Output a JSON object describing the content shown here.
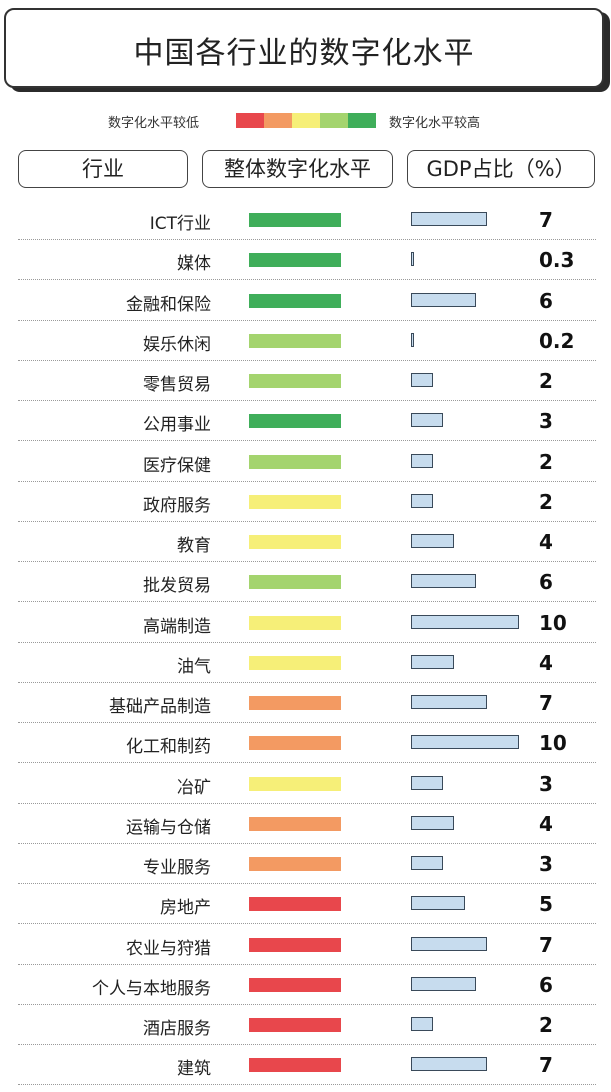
{
  "title": "中国各行业的数字化水平",
  "legend": {
    "low_label": "数字化水平较低",
    "high_label": "数字化水平较高",
    "colors": [
      "#e8474c",
      "#f39a62",
      "#f6ef78",
      "#a4d46e",
      "#3fae5a"
    ]
  },
  "headers": {
    "industry": "行业",
    "level": "整体数字化水平",
    "gdp": "GDP占比（%）"
  },
  "level_colors": {
    "5": "#3fae5a",
    "4": "#a4d46e",
    "3": "#f6ef78",
    "2": "#f39a62",
    "1": "#e8474c"
  },
  "chart_data": {
    "type": "table",
    "columns": [
      "行业",
      "整体数字化水平",
      "GDP占比（%）"
    ],
    "level_scale": "1 = 数字化水平较低 (red) … 5 = 数字化水平较高 (green)",
    "rows": [
      {
        "industry": "ICT行业",
        "level": 5,
        "gdp": 7,
        "gdp_label": "7"
      },
      {
        "industry": "媒体",
        "level": 5,
        "gdp": 0.3,
        "gdp_label": "0.3"
      },
      {
        "industry": "金融和保险",
        "level": 5,
        "gdp": 6,
        "gdp_label": "6"
      },
      {
        "industry": "娱乐休闲",
        "level": 4,
        "gdp": 0.2,
        "gdp_label": "0.2"
      },
      {
        "industry": "零售贸易",
        "level": 4,
        "gdp": 2,
        "gdp_label": "2"
      },
      {
        "industry": "公用事业",
        "level": 5,
        "gdp": 3,
        "gdp_label": "3"
      },
      {
        "industry": "医疗保健",
        "level": 4,
        "gdp": 2,
        "gdp_label": "2"
      },
      {
        "industry": "政府服务",
        "level": 3,
        "gdp": 2,
        "gdp_label": "2"
      },
      {
        "industry": "教育",
        "level": 3,
        "gdp": 4,
        "gdp_label": "4"
      },
      {
        "industry": "批发贸易",
        "level": 4,
        "gdp": 6,
        "gdp_label": "6"
      },
      {
        "industry": "高端制造",
        "level": 3,
        "gdp": 10,
        "gdp_label": "10"
      },
      {
        "industry": "油气",
        "level": 3,
        "gdp": 4,
        "gdp_label": "4"
      },
      {
        "industry": "基础产品制造",
        "level": 2,
        "gdp": 7,
        "gdp_label": "7"
      },
      {
        "industry": "化工和制药",
        "level": 2,
        "gdp": 10,
        "gdp_label": "10"
      },
      {
        "industry": "冶矿",
        "level": 3,
        "gdp": 3,
        "gdp_label": "3"
      },
      {
        "industry": "运输与仓储",
        "level": 2,
        "gdp": 4,
        "gdp_label": "4"
      },
      {
        "industry": "专业服务",
        "level": 2,
        "gdp": 3,
        "gdp_label": "3"
      },
      {
        "industry": "房地产",
        "level": 1,
        "gdp": 5,
        "gdp_label": "5"
      },
      {
        "industry": "农业与狩猎",
        "level": 1,
        "gdp": 7,
        "gdp_label": "7"
      },
      {
        "industry": "个人与本地服务",
        "level": 1,
        "gdp": 6,
        "gdp_label": "6"
      },
      {
        "industry": "酒店服务",
        "level": 1,
        "gdp": 2,
        "gdp_label": "2"
      },
      {
        "industry": "建筑",
        "level": 1,
        "gdp": 7,
        "gdp_label": "7"
      }
    ]
  }
}
